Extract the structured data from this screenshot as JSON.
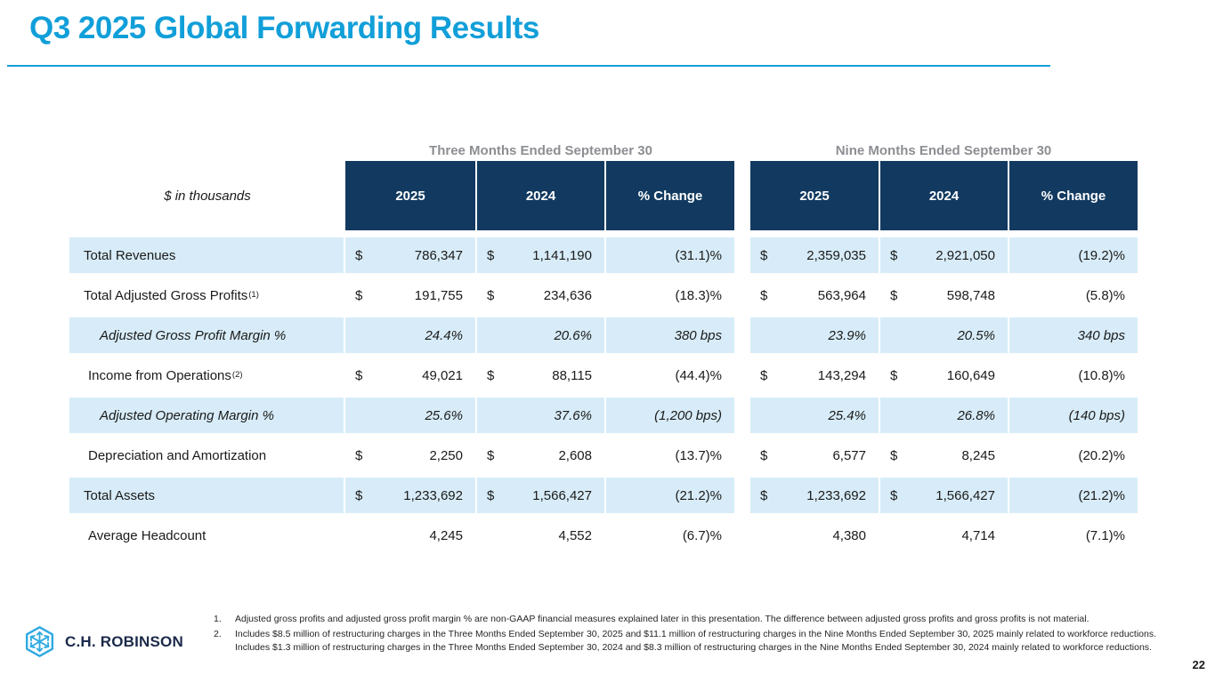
{
  "slide": {
    "title": "Q3 2025 Global Forwarding Results",
    "page_number": "22",
    "accent_color": "#119fd9",
    "header_navy": "#123a60",
    "stripe_blue": "#d7ecf8",
    "period_gray": "#8c8e92"
  },
  "logo": {
    "text": "C.H. ROBINSON",
    "icon": "hexagon-arrows-logo-icon",
    "icon_color": "#2fa9e1"
  },
  "table": {
    "units_label": "$ in thousands",
    "groups": [
      {
        "label": "Three Months Ended September 30",
        "columns": [
          "2025",
          "2024",
          "% Change"
        ]
      },
      {
        "label": "Nine Months Ended September 30",
        "columns": [
          "2025",
          "2024",
          "% Change"
        ]
      }
    ],
    "currency_symbol": "$",
    "rows": [
      {
        "label": "Total Revenues",
        "sup": "",
        "italic": false,
        "indent": 16,
        "dollar": true,
        "cells": [
          "786,347",
          "1,141,190",
          "(31.1)%",
          "2,359,035",
          "2,921,050",
          "(19.2)%"
        ]
      },
      {
        "label": "Total Adjusted Gross Profits",
        "sup": "(1)",
        "italic": false,
        "indent": 16,
        "dollar": true,
        "cells": [
          "191,755",
          "234,636",
          "(18.3)%",
          "563,964",
          "598,748",
          "(5.8)%"
        ]
      },
      {
        "label": "Adjusted Gross Profit Margin %",
        "sup": "",
        "italic": true,
        "indent": 34,
        "dollar": false,
        "cells": [
          "24.4%",
          "20.6%",
          "380 bps",
          "23.9%",
          "20.5%",
          "340 bps"
        ]
      },
      {
        "label": "Income from Operations",
        "sup": "(2)",
        "italic": false,
        "indent": 21,
        "dollar": true,
        "cells": [
          "49,021",
          "88,115",
          "(44.4)%",
          "143,294",
          "160,649",
          "(10.8)%"
        ]
      },
      {
        "label": "Adjusted Operating Margin %",
        "sup": "",
        "italic": true,
        "indent": 34,
        "dollar": false,
        "cells": [
          "25.6%",
          "37.6%",
          "(1,200 bps)",
          "25.4%",
          "26.8%",
          "(140 bps)"
        ]
      },
      {
        "label": "Depreciation and Amortization",
        "sup": "",
        "italic": false,
        "indent": 21,
        "dollar": true,
        "cells": [
          "2,250",
          "2,608",
          "(13.7)%",
          "6,577",
          "8,245",
          "(20.2)%"
        ]
      },
      {
        "label": "Total Assets",
        "sup": "",
        "italic": false,
        "indent": 16,
        "dollar": true,
        "cells": [
          "1,233,692",
          "1,566,427",
          "(21.2)%",
          "1,233,692",
          "1,566,427",
          "(21.2)%"
        ]
      },
      {
        "label": "Average Headcount",
        "sup": "",
        "italic": false,
        "indent": 21,
        "dollar": false,
        "cells": [
          "4,245",
          "4,552",
          "(6.7)%",
          "4,380",
          "4,714",
          "(7.1)%"
        ]
      }
    ]
  },
  "footnotes": [
    {
      "number": "1.",
      "text": "Adjusted gross profits and adjusted gross profit margin % are non-GAAP financial measures explained later in this presentation. The difference between adjusted gross profits and gross profits is not material."
    },
    {
      "number": "2.",
      "text": "Includes $8.5 million of restructuring charges in the Three Months Ended September 30, 2025 and $11.1 million of restructuring charges in the Nine Months Ended September 30, 2025 mainly related to workforce reductions. Includes $1.3 million of restructuring charges in the Three Months Ended September 30, 2024 and $8.3 million of restructuring charges in the Nine Months Ended September 30, 2024 mainly related to workforce reductions."
    }
  ]
}
